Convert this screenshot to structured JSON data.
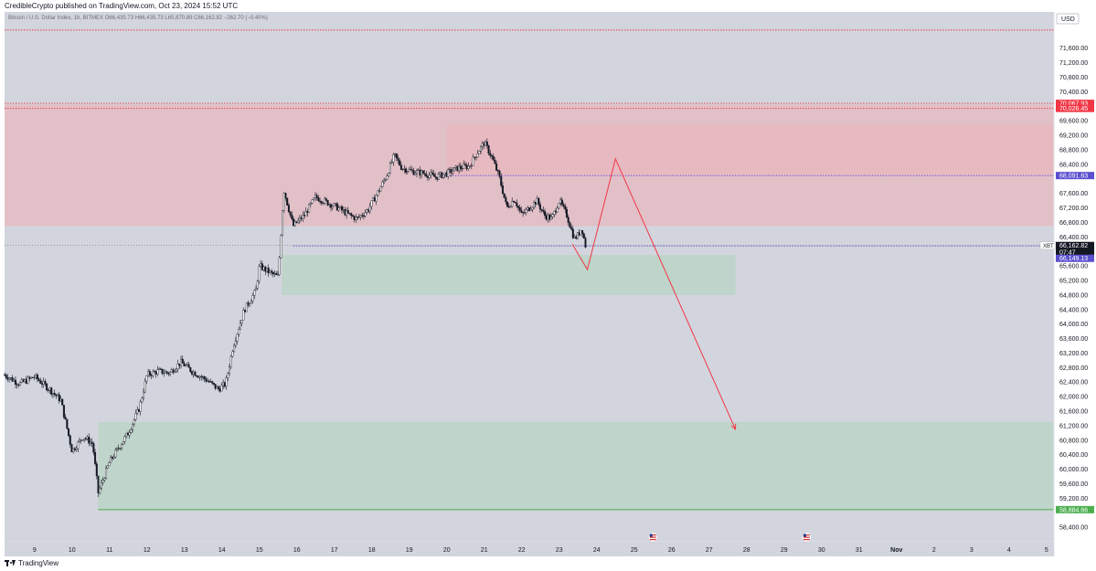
{
  "header": {
    "published": "CredibleCrypto published on TradingView.com, Oct 23, 2024 15:52 UTC"
  },
  "legend": {
    "text": "Bitcoin / U.S. Dollar Index, 1h, BITMEX  O66,435.73  H66,435.73  L65,870.89  C66,162.82  −262.70 (−0.40%)"
  },
  "footer": {
    "brand": "TradingView"
  },
  "colors": {
    "plot_bg": "#d2d5dd",
    "supply_zone": "#e8b7bf",
    "demand_zone": "#bcd3c7",
    "candle": "#131722",
    "projection_line": "#f23645",
    "dotted_purple": "#5b4fcf",
    "dotted_red": "#f23645",
    "green_line": "#4caf50"
  },
  "chart_data": {
    "type": "candlestick",
    "title": "Bitcoin / U.S. Dollar Index",
    "symbol": "XBT",
    "exchange": "BITMEX",
    "interval": "1h",
    "currency": "USD",
    "ohlc_last": {
      "open": "66,435.73",
      "high": "66,435.73",
      "low": "65,870.89",
      "close": "66,162.82",
      "change": "−262.70 (−0.40%)"
    },
    "y_range": [
      58000,
      72600
    ],
    "x_range": [
      8.2,
      36.2
    ],
    "y_ticks": [
      {
        "v": 71600,
        "label": "71,600.00"
      },
      {
        "v": 71200,
        "label": "71,200.00"
      },
      {
        "v": 70800,
        "label": "70,800.00"
      },
      {
        "v": 70400,
        "label": "70,400.00"
      },
      {
        "v": 69600,
        "label": "69,600.00"
      },
      {
        "v": 69200,
        "label": "69,200.00"
      },
      {
        "v": 68800,
        "label": "68,800.00"
      },
      {
        "v": 68400,
        "label": "68,400.00"
      },
      {
        "v": 67600,
        "label": "67,600.00"
      },
      {
        "v": 67200,
        "label": "67,200.00"
      },
      {
        "v": 66800,
        "label": "66,800.00"
      },
      {
        "v": 66400,
        "label": "66,400.00"
      },
      {
        "v": 65600,
        "label": "65,600.00"
      },
      {
        "v": 65200,
        "label": "65,200.00"
      },
      {
        "v": 64800,
        "label": "64,800.00"
      },
      {
        "v": 64400,
        "label": "64,400.00"
      },
      {
        "v": 64000,
        "label": "64,000.00"
      },
      {
        "v": 63600,
        "label": "63,600.00"
      },
      {
        "v": 63200,
        "label": "63,200.00"
      },
      {
        "v": 62800,
        "label": "62,800.00"
      },
      {
        "v": 62400,
        "label": "62,400.00"
      },
      {
        "v": 62000,
        "label": "62,000.00"
      },
      {
        "v": 61600,
        "label": "61,600.00"
      },
      {
        "v": 61200,
        "label": "61,200.00"
      },
      {
        "v": 60800,
        "label": "60,800.00"
      },
      {
        "v": 60400,
        "label": "60,400.00"
      },
      {
        "v": 60000,
        "label": "60,000.00"
      },
      {
        "v": 59600,
        "label": "59,600.00"
      },
      {
        "v": 59200,
        "label": "59,200.00"
      },
      {
        "v": 58400,
        "label": "58,400.00"
      }
    ],
    "x_ticks": [
      {
        "t": 9,
        "label": "9"
      },
      {
        "t": 10,
        "label": "10"
      },
      {
        "t": 11,
        "label": "11"
      },
      {
        "t": 12,
        "label": "12"
      },
      {
        "t": 13,
        "label": "13"
      },
      {
        "t": 14,
        "label": "14"
      },
      {
        "t": 15,
        "label": "15"
      },
      {
        "t": 16,
        "label": "16"
      },
      {
        "t": 17,
        "label": "17"
      },
      {
        "t": 18,
        "label": "18"
      },
      {
        "t": 19,
        "label": "19"
      },
      {
        "t": 20,
        "label": "20"
      },
      {
        "t": 21,
        "label": "21"
      },
      {
        "t": 22,
        "label": "22"
      },
      {
        "t": 23,
        "label": "23"
      },
      {
        "t": 24,
        "label": "24"
      },
      {
        "t": 25,
        "label": "25"
      },
      {
        "t": 26,
        "label": "26"
      },
      {
        "t": 27,
        "label": "27"
      },
      {
        "t": 28,
        "label": "28"
      },
      {
        "t": 29,
        "label": "29"
      },
      {
        "t": 30,
        "label": "30"
      },
      {
        "t": 31,
        "label": "31"
      },
      {
        "t": 32,
        "label": "Nov"
      },
      {
        "t": 33,
        "label": "2"
      },
      {
        "t": 34,
        "label": "3"
      },
      {
        "t": 35,
        "label": "4"
      },
      {
        "t": 36,
        "label": "5"
      }
    ],
    "price_tags": [
      {
        "v": 70080,
        "label": "70,067.93",
        "color": "#f23645"
      },
      {
        "v": 69940,
        "label": "70,026.45",
        "color": "#f23645"
      },
      {
        "v": 68090,
        "label": "68,091.63",
        "color": "#5b4fcf"
      },
      {
        "v": 66163,
        "label": "66,162.82",
        "color": "#131722",
        "prefix": "XBT",
        "sub": "07:47"
      },
      {
        "v": 65810,
        "label": "66,149.13",
        "color": "#5b4fcf"
      },
      {
        "v": 58885,
        "label": "58,884.66",
        "color": "#4caf50"
      }
    ],
    "zones": [
      {
        "kind": "supply",
        "t0": 8.2,
        "t1": 36.2,
        "v0": 66700,
        "v1": 70050
      },
      {
        "kind": "supply",
        "t0": 20.0,
        "t1": 36.2,
        "v0": 68100,
        "v1": 69500
      },
      {
        "kind": "demand",
        "t0": 15.6,
        "t1": 27.7,
        "v0": 64800,
        "v1": 65900
      },
      {
        "kind": "demand",
        "t0": 10.7,
        "t1": 36.2,
        "v0": 58885,
        "v1": 61300
      }
    ],
    "levels": [
      {
        "v": 72100,
        "style": "dotted",
        "color": "#f23645",
        "t0": 8.2
      },
      {
        "v": 70080,
        "style": "dotted",
        "color": "#f23645",
        "t0": 8.2
      },
      {
        "v": 69940,
        "style": "dotted",
        "color": "#f23645",
        "t0": 8.2
      },
      {
        "v": 68090,
        "style": "dotted",
        "color": "#5b4fcf",
        "t0": 20.0
      },
      {
        "v": 66150,
        "style": "dotted",
        "color": "#5b4fcf",
        "t0": 15.9
      },
      {
        "v": 58885,
        "style": "solid",
        "color": "#4caf50",
        "t0": 10.7
      }
    ],
    "path": [
      [
        8.2,
        62600
      ],
      [
        8.6,
        62350
      ],
      [
        9.0,
        62550
      ],
      [
        9.4,
        62200
      ],
      [
        9.7,
        61900
      ],
      [
        10.0,
        60500
      ],
      [
        10.3,
        60900
      ],
      [
        10.55,
        60700
      ],
      [
        10.7,
        59350
      ],
      [
        11.0,
        60200
      ],
      [
        11.5,
        61000
      ],
      [
        11.8,
        61700
      ],
      [
        12.0,
        62600
      ],
      [
        12.3,
        62700
      ],
      [
        12.6,
        62650
      ],
      [
        12.9,
        62950
      ],
      [
        13.2,
        62700
      ],
      [
        13.6,
        62450
      ],
      [
        13.9,
        62200
      ],
      [
        14.1,
        62350
      ],
      [
        14.3,
        63400
      ],
      [
        14.6,
        64400
      ],
      [
        14.9,
        64900
      ],
      [
        15.0,
        65600
      ],
      [
        15.3,
        65400
      ],
      [
        15.5,
        65300
      ],
      [
        15.65,
        67700
      ],
      [
        15.9,
        66700
      ],
      [
        16.2,
        67000
      ],
      [
        16.5,
        67500
      ],
      [
        16.8,
        67350
      ],
      [
        17.1,
        67200
      ],
      [
        17.4,
        67000
      ],
      [
        17.6,
        66900
      ],
      [
        17.9,
        67150
      ],
      [
        18.2,
        67700
      ],
      [
        18.4,
        68100
      ],
      [
        18.6,
        68650
      ],
      [
        18.8,
        68300
      ],
      [
        19.1,
        68200
      ],
      [
        19.4,
        68150
      ],
      [
        19.7,
        68050
      ],
      [
        20.0,
        68150
      ],
      [
        20.3,
        68300
      ],
      [
        20.6,
        68350
      ],
      [
        20.8,
        68700
      ],
      [
        21.0,
        69000
      ],
      [
        21.2,
        68600
      ],
      [
        21.4,
        68050
      ],
      [
        21.6,
        67200
      ],
      [
        21.8,
        67450
      ],
      [
        22.0,
        67000
      ],
      [
        22.2,
        67200
      ],
      [
        22.4,
        67400
      ],
      [
        22.6,
        67000
      ],
      [
        22.8,
        66900
      ],
      [
        23.0,
        67400
      ],
      [
        23.2,
        67000
      ],
      [
        23.4,
        66350
      ],
      [
        23.5,
        66450
      ],
      [
        23.6,
        66650
      ],
      [
        23.7,
        66163
      ]
    ],
    "projection": [
      [
        23.35,
        66200
      ],
      [
        23.75,
        65500
      ],
      [
        24.5,
        68550
      ],
      [
        27.7,
        61100
      ]
    ],
    "events": [
      {
        "t": 25.5
      },
      {
        "t": 29.6
      }
    ]
  }
}
